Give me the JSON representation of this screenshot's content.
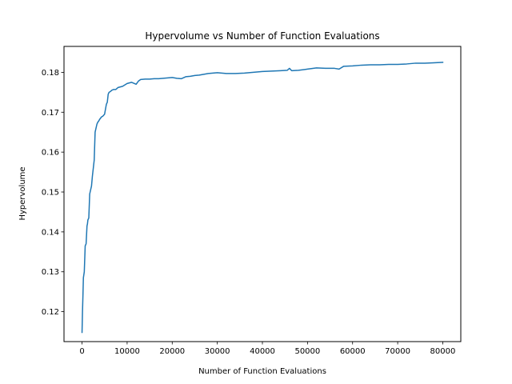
{
  "chart_data": {
    "type": "line",
    "title": "Hypervolume vs Number of Function Evaluations",
    "xlabel": "Number of Function Evaluations",
    "ylabel": "Hypervolume",
    "xlim": [
      -4000,
      84000
    ],
    "ylim": [
      0.1125,
      0.1865
    ],
    "x_ticks": [
      0,
      10000,
      20000,
      30000,
      40000,
      50000,
      60000,
      70000,
      80000
    ],
    "x_tick_labels": [
      "0",
      "10000",
      "20000",
      "30000",
      "40000",
      "50000",
      "60000",
      "70000",
      "80000"
    ],
    "y_ticks": [
      0.12,
      0.13,
      0.14,
      0.15,
      0.16,
      0.17,
      0.18
    ],
    "y_tick_labels": [
      "0.12",
      "0.13",
      "0.14",
      "0.15",
      "0.16",
      "0.17",
      "0.18"
    ],
    "grid": false,
    "legend": "none",
    "series": [
      {
        "color": "#1f77b4",
        "x": [
          0,
          100,
          200,
          300,
          500,
          700,
          900,
          1100,
          1200,
          1300,
          1500,
          1700,
          1900,
          2100,
          2300,
          2500,
          2700,
          2900,
          3100,
          3200,
          3300,
          3500,
          3700,
          3900,
          4100,
          4300,
          4600,
          5000,
          5400,
          5600,
          5800,
          6000,
          6300,
          6600,
          7000,
          7500,
          8000,
          9000,
          10000,
          11000,
          12000,
          12500,
          13000,
          14000,
          15000,
          16000,
          17000,
          18000,
          19000,
          20000,
          21000,
          22000,
          23000,
          24000,
          25000,
          26000,
          27000,
          28000,
          29000,
          30000,
          32000,
          34000,
          36000,
          38000,
          40000,
          42000,
          44000,
          45500,
          46000,
          46500,
          48000,
          50000,
          52000,
          54000,
          56000,
          57000,
          58000,
          60000,
          62000,
          64000,
          66000,
          68000,
          70000,
          72000,
          74000,
          76000,
          78000,
          80000
        ],
        "y": [
          0.1148,
          0.12,
          0.124,
          0.1285,
          0.13,
          0.1365,
          0.137,
          0.1415,
          0.142,
          0.143,
          0.1435,
          0.1495,
          0.1505,
          0.1515,
          0.154,
          0.156,
          0.158,
          0.165,
          0.166,
          0.1665,
          0.167,
          0.1675,
          0.1678,
          0.1682,
          0.1685,
          0.1688,
          0.169,
          0.1695,
          0.172,
          0.1725,
          0.1745,
          0.175,
          0.1752,
          0.1755,
          0.1757,
          0.1757,
          0.1762,
          0.1765,
          0.1772,
          0.1775,
          0.177,
          0.1778,
          0.1782,
          0.1783,
          0.1783,
          0.1784,
          0.1784,
          0.1785,
          0.1786,
          0.1787,
          0.1785,
          0.1784,
          0.1789,
          0.179,
          0.1792,
          0.1793,
          0.1795,
          0.1797,
          0.1798,
          0.1799,
          0.1797,
          0.1797,
          0.1798,
          0.18,
          0.1802,
          0.1803,
          0.1804,
          0.1805,
          0.181,
          0.1804,
          0.1805,
          0.1808,
          0.1811,
          0.181,
          0.181,
          0.1808,
          0.1815,
          0.1816,
          0.1818,
          0.1819,
          0.1819,
          0.182,
          0.182,
          0.1821,
          0.1823,
          0.1823,
          0.1824,
          0.1825
        ]
      }
    ]
  }
}
